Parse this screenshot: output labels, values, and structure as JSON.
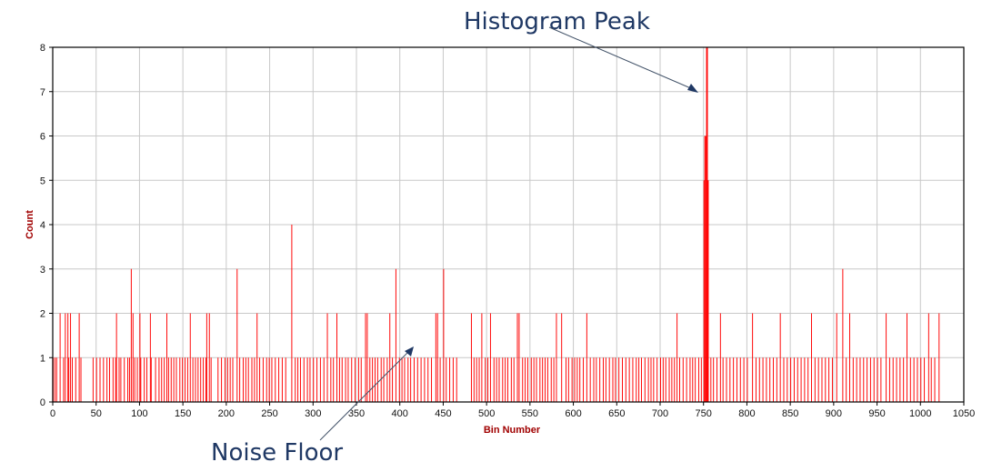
{
  "chart_data": {
    "type": "bar",
    "title": "",
    "xlabel": "Bin Number",
    "ylabel": "Count",
    "xlim": [
      0,
      1050
    ],
    "ylim": [
      0,
      8
    ],
    "x_ticks": [
      "0",
      "50",
      "100",
      "150",
      "200",
      "250",
      "300",
      "350",
      "400",
      "450",
      "500",
      "550",
      "600",
      "650",
      "700",
      "750",
      "800",
      "850",
      "900",
      "950",
      "1000",
      "1050"
    ],
    "y_ticks": [
      "0",
      "1",
      "2",
      "3",
      "4",
      "5",
      "6",
      "7",
      "8"
    ],
    "grid": true,
    "legend": "none",
    "bar_color": "#ff0000",
    "notable_bins": [
      {
        "bin": 90,
        "count": 3
      },
      {
        "bin": 212,
        "count": 3
      },
      {
        "bin": 275,
        "count": 4
      },
      {
        "bin": 395,
        "count": 3
      },
      {
        "bin": 450,
        "count": 3
      },
      {
        "bin": 750,
        "count": 5
      },
      {
        "bin": 751,
        "count": 6
      },
      {
        "bin": 752,
        "count": 6
      },
      {
        "bin": 753,
        "count": 8
      },
      {
        "bin": 754,
        "count": 8
      },
      {
        "bin": 755,
        "count": 5
      },
      {
        "bin": 910,
        "count": 3
      }
    ],
    "count2_bins": [
      8,
      14,
      17,
      20,
      30,
      73,
      92,
      100,
      112,
      131,
      158,
      177,
      180,
      235,
      316,
      327,
      360,
      362,
      388,
      441,
      443,
      482,
      494,
      504,
      535,
      537,
      580,
      586,
      615,
      719,
      769,
      806,
      838,
      874,
      903,
      918,
      960,
      984,
      1009,
      1021
    ],
    "count1_bins": [
      0,
      2,
      4,
      12,
      18,
      22,
      26,
      32,
      46,
      50,
      54,
      58,
      62,
      65,
      69,
      72,
      76,
      78,
      82,
      86,
      88,
      94,
      97,
      101,
      105,
      108,
      113,
      118,
      122,
      125,
      128,
      133,
      136,
      139,
      142,
      146,
      149,
      152,
      155,
      161,
      164,
      167,
      170,
      173,
      176,
      182,
      190,
      194,
      198,
      201,
      204,
      207,
      215,
      219,
      222,
      225,
      229,
      232,
      238,
      242,
      246,
      249,
      252,
      256,
      260,
      264,
      268,
      279,
      282,
      285,
      289,
      293,
      296,
      300,
      304,
      308,
      312,
      320,
      323,
      330,
      333,
      337,
      340,
      344,
      348,
      352,
      355,
      365,
      368,
      371,
      374,
      378,
      381,
      385,
      391,
      399,
      402,
      405,
      409,
      412,
      416,
      420,
      424,
      428,
      432,
      436,
      446,
      453,
      457,
      461,
      465,
      485,
      488,
      491,
      498,
      501,
      508,
      511,
      514,
      518,
      521,
      524,
      528,
      531,
      541,
      544,
      547,
      551,
      554,
      557,
      561,
      564,
      567,
      570,
      574,
      577,
      591,
      594,
      598,
      601,
      604,
      607,
      611,
      619,
      623,
      626,
      630,
      634,
      637,
      641,
      645,
      648,
      652,
      656,
      660,
      664,
      668,
      672,
      675,
      678,
      682,
      686,
      689,
      692,
      696,
      700,
      703,
      706,
      710,
      713,
      716,
      722,
      726,
      730,
      734,
      737,
      740,
      744,
      747,
      758,
      761,
      765,
      772,
      776,
      780,
      784,
      788,
      792,
      796,
      800,
      810,
      814,
      818,
      822,
      826,
      830,
      834,
      842,
      846,
      850,
      854,
      858,
      862,
      866,
      870,
      878,
      882,
      886,
      890,
      894,
      898,
      914,
      922,
      926,
      930,
      934,
      938,
      942,
      946,
      950,
      954,
      964,
      968,
      972,
      976,
      980,
      988,
      992,
      996,
      1000,
      1004,
      1012,
      1016
    ]
  },
  "annotations": {
    "peak_label": "Histogram Peak",
    "noise_label": "Noise Floor"
  }
}
